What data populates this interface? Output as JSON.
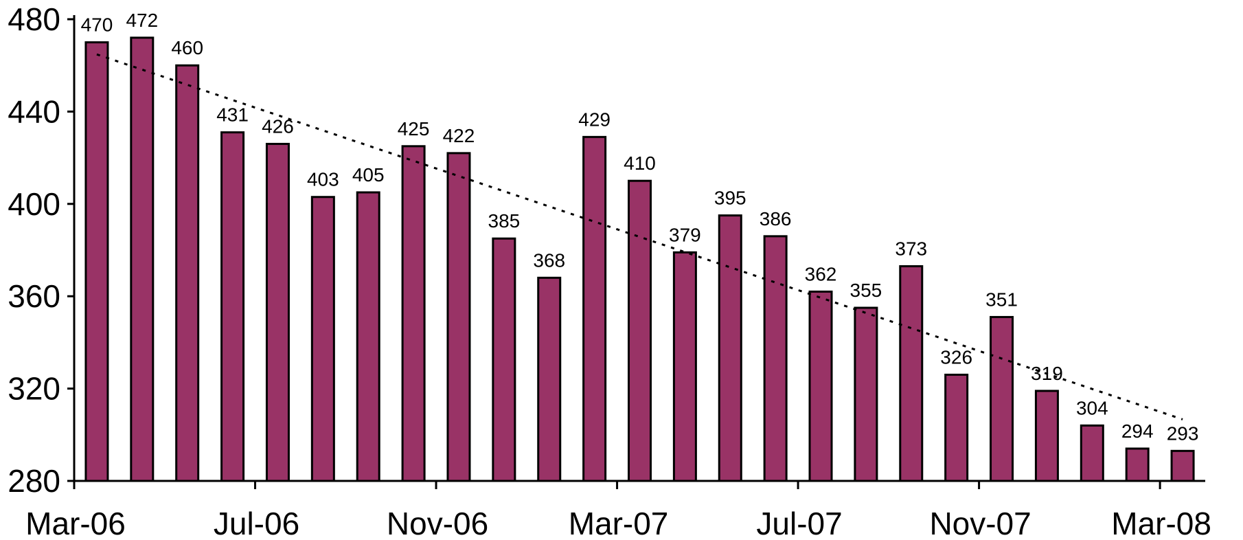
{
  "chart_data": {
    "type": "bar",
    "title": "",
    "xlabel": "",
    "ylabel": "",
    "ylim": [
      280,
      480
    ],
    "yticks": [
      280,
      320,
      360,
      400,
      440,
      480
    ],
    "categories": [
      "Mar-06",
      "Apr-06",
      "May-06",
      "Jun-06",
      "Jul-06",
      "Aug-06",
      "Sep-06",
      "Oct-06",
      "Nov-06",
      "Dec-06",
      "Jan-07",
      "Feb-07",
      "Mar-07",
      "Apr-07",
      "May-07",
      "Jun-07",
      "Jul-07",
      "Aug-07",
      "Sep-07",
      "Oct-07",
      "Nov-07",
      "Dec-07",
      "Jan-08",
      "Feb-08",
      "Mar-08"
    ],
    "x_tick_labels": [
      {
        "index": 0,
        "label": "Mar-06"
      },
      {
        "index": 4,
        "label": "Jul-06"
      },
      {
        "index": 8,
        "label": "Nov-06"
      },
      {
        "index": 12,
        "label": "Mar-07"
      },
      {
        "index": 16,
        "label": "Jul-07"
      },
      {
        "index": 20,
        "label": "Nov-07"
      },
      {
        "index": 24,
        "label": "Mar-08"
      }
    ],
    "series": [
      {
        "values": [
          470,
          472,
          460,
          431,
          426,
          403,
          405,
          425,
          422,
          385,
          368,
          429,
          410,
          379,
          395,
          386,
          362,
          355,
          373,
          326,
          351,
          319,
          304,
          294,
          293
        ]
      }
    ],
    "data_labels": [
      "470",
      "472",
      "460",
      "431",
      "426",
      "403",
      "405",
      "425",
      "422",
      "385",
      "368",
      "429",
      "410",
      "379",
      "395",
      "386",
      "362",
      "355",
      "373",
      "326",
      "351",
      "319",
      "304",
      "294",
      "293"
    ],
    "trendline": {
      "type": "linear",
      "style": "dotted"
    },
    "grid": false,
    "legend": "none",
    "colors": {
      "bar": "#993366",
      "outline": "#000000"
    }
  }
}
